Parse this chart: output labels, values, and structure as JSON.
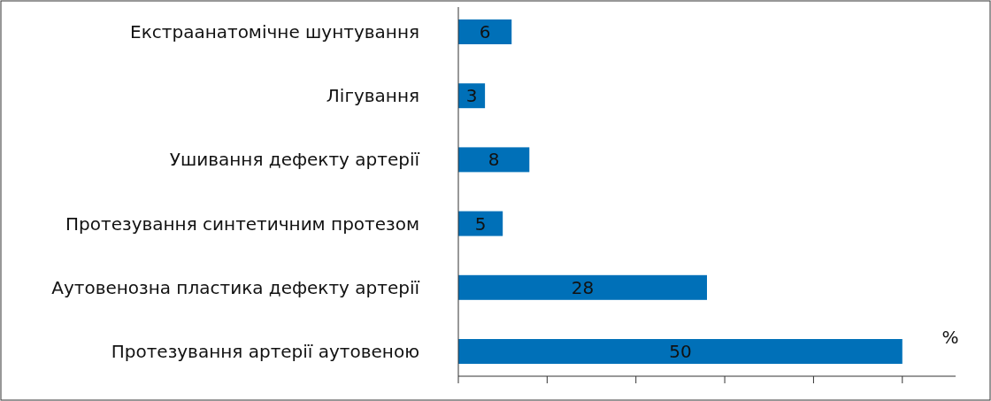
{
  "chart_data": {
    "type": "bar",
    "orientation": "horizontal",
    "categories": [
      "Екстраанатомічне шунтування",
      "Лігування",
      "Ушивання дефекту артерії",
      "Протезування синтетичним протезом",
      "Аутовенозна пластика дефекту артерії",
      "Протезування артерії аутовеною"
    ],
    "values": [
      6,
      3,
      8,
      5,
      28,
      50
    ],
    "color": "#0070b8",
    "data_labels": true,
    "xlabel": "%",
    "xlim": [
      0,
      56
    ],
    "xticks": [
      {
        "value": 0,
        "label": null
      },
      {
        "value": 10,
        "label": null
      },
      {
        "value": 20,
        "label": null
      },
      {
        "value": 30,
        "label": null
      },
      {
        "value": 40,
        "label": null
      },
      {
        "value": 50,
        "label": null
      }
    ],
    "tick_labels": "y"
  }
}
